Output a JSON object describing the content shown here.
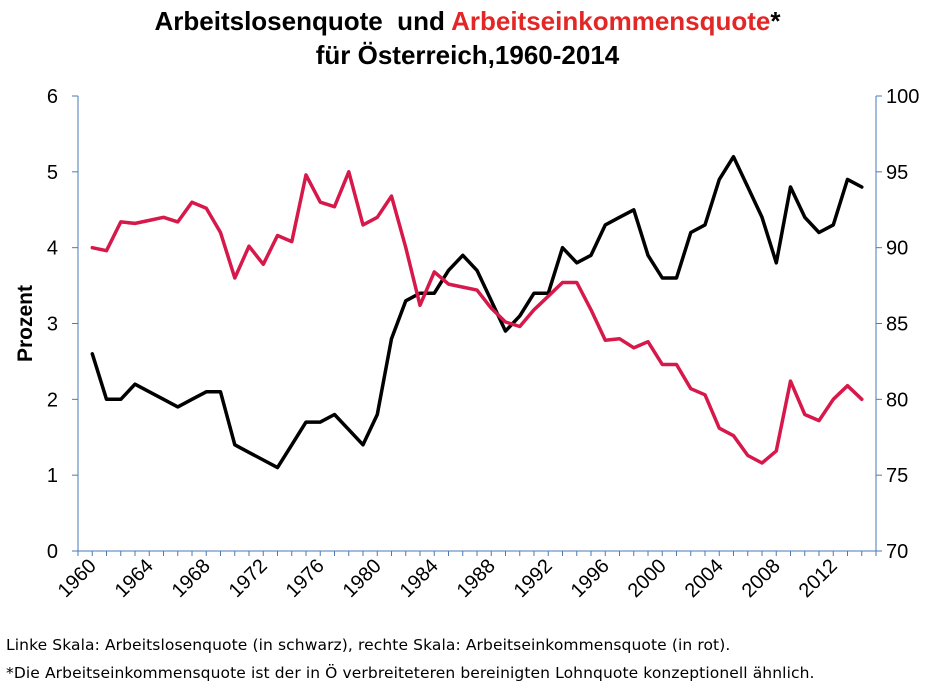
{
  "title": {
    "part1": "Arbeitslosenquote",
    "part2": "Arbeitseinkommensquote",
    "asterisk": "*",
    "line2": "für Österreich,1960-2014"
  },
  "footnotes": [
    "Linke Skala: Arbeitslosenquote (in schwarz), rechte Skala: Arbeitseinkommensquote (in rot).",
    "*Die Arbeitseinkommensquote ist der in Ö verbreiteteren bereinigten Lohnquote konzeptionell ähnlich."
  ],
  "colors": {
    "unemployment": "#000000",
    "labor_share": "#d6194a",
    "axis": "#4a7ab8",
    "title_red": "#e32626"
  },
  "chart_data": {
    "type": "line",
    "title": "Arbeitslosenquote und Arbeitseinkommensquote* für Österreich,1960-2014",
    "ylabel": "Prozent",
    "ylim_left": [
      0,
      6
    ],
    "yticks_left": [
      "0",
      "1",
      "2",
      "3",
      "4",
      "5",
      "6"
    ],
    "ylim_right": [
      70,
      100
    ],
    "yticks_right": [
      "70",
      "75",
      "80",
      "85",
      "90",
      "95",
      "100"
    ],
    "xticks": [
      "1960",
      "1964",
      "1968",
      "1972",
      "1976",
      "1980",
      "1984",
      "1988",
      "1992",
      "1996",
      "2000",
      "2004",
      "2008",
      "2012"
    ],
    "x": [
      1960,
      1961,
      1962,
      1963,
      1964,
      1965,
      1966,
      1967,
      1968,
      1969,
      1970,
      1971,
      1972,
      1973,
      1974,
      1975,
      1976,
      1977,
      1978,
      1979,
      1980,
      1981,
      1982,
      1983,
      1984,
      1985,
      1986,
      1987,
      1988,
      1989,
      1990,
      1991,
      1992,
      1993,
      1994,
      1995,
      1996,
      1997,
      1998,
      1999,
      2000,
      2001,
      2002,
      2003,
      2004,
      2005,
      2006,
      2007,
      2008,
      2009,
      2010,
      2011,
      2012,
      2013,
      2014
    ],
    "series": [
      {
        "axis": "left",
        "values": [
          2.6,
          2.0,
          2.0,
          2.2,
          2.1,
          2.0,
          1.9,
          2.0,
          2.1,
          2.1,
          1.4,
          1.3,
          1.2,
          1.1,
          1.4,
          1.7,
          1.7,
          1.8,
          1.6,
          1.4,
          1.8,
          2.8,
          3.3,
          3.4,
          3.4,
          3.7,
          3.9,
          3.7,
          3.3,
          2.9,
          3.1,
          3.4,
          3.4,
          4.0,
          3.8,
          3.9,
          4.3,
          4.4,
          4.5,
          3.9,
          3.6,
          3.6,
          4.2,
          4.3,
          4.9,
          5.2,
          4.8,
          4.4,
          3.8,
          4.8,
          4.4,
          4.2,
          4.3,
          4.9,
          4.8
        ]
      },
      {
        "axis": "right",
        "values": [
          90.0,
          89.8,
          91.7,
          91.6,
          91.8,
          92.0,
          91.7,
          93.0,
          92.6,
          91.0,
          88.0,
          90.1,
          88.9,
          90.8,
          90.4,
          94.8,
          93.0,
          92.7,
          95.0,
          91.5,
          92.0,
          93.4,
          90.0,
          86.2,
          88.4,
          87.6,
          87.4,
          87.2,
          86.0,
          85.1,
          84.8,
          85.9,
          86.8,
          87.7,
          87.7,
          85.9,
          83.9,
          84.0,
          83.4,
          83.8,
          82.3,
          82.3,
          80.7,
          80.3,
          78.1,
          77.6,
          76.3,
          75.8,
          76.6,
          81.2,
          79.0,
          78.6,
          80.0,
          80.9,
          80.0
        ]
      }
    ]
  }
}
